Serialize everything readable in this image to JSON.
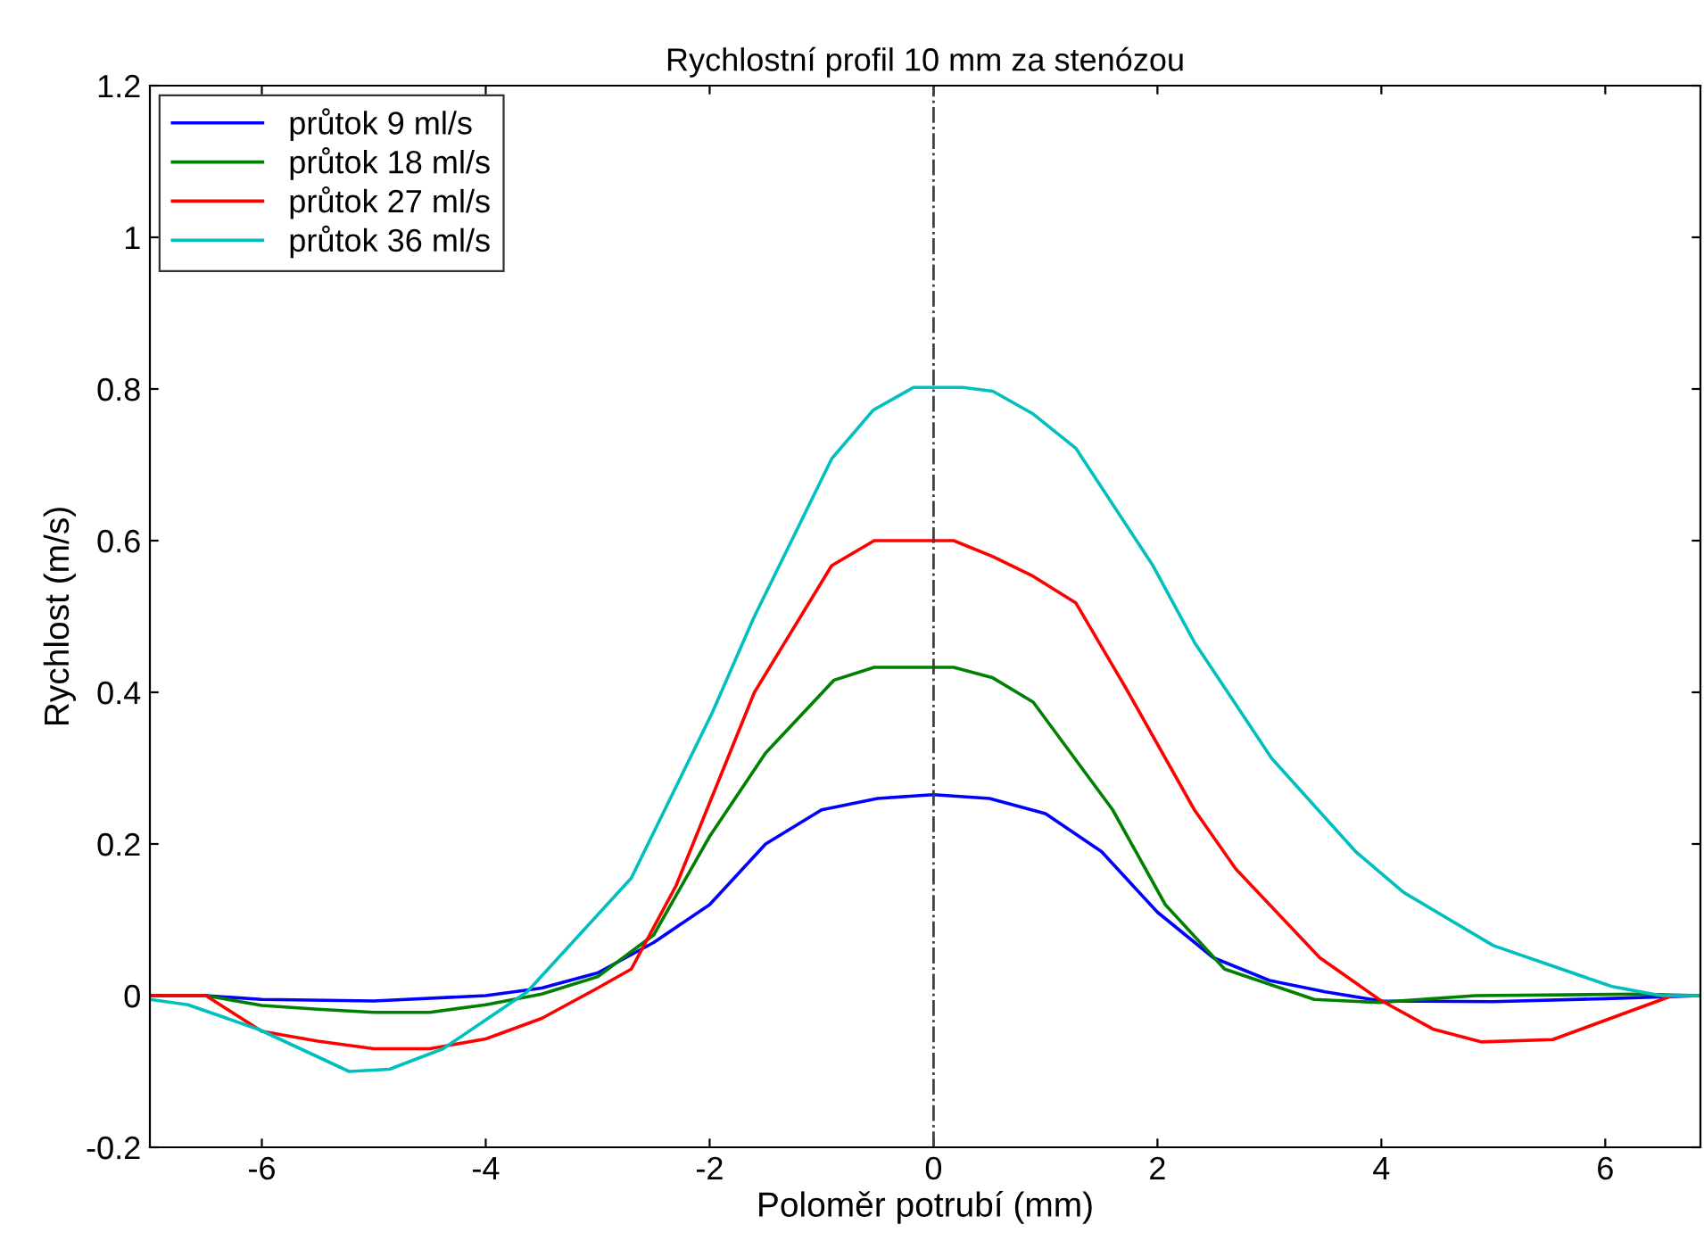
{
  "chart_data": {
    "type": "line",
    "title": "Rychlostní profil 10 mm za stenózou",
    "xlabel": "Poloměr potrubí (mm)",
    "ylabel": "Rychlost (m/s)",
    "xlim": [
      -7,
      6.85
    ],
    "xticks": [
      -6,
      -4,
      -2,
      0,
      2,
      4,
      6
    ],
    "ylim": [
      -0.2,
      1.2
    ],
    "yticks": [
      {
        "value": -0.2,
        "label": "-0.2"
      },
      0,
      0.2,
      0.4,
      0.6,
      0.8,
      1,
      1.2
    ],
    "grid": false,
    "legend": "top left",
    "line_style": "solid",
    "marker": "none",
    "ref_lines": [
      {
        "axis": "x",
        "value": 0,
        "color": "#404040",
        "line_style": "dashdot"
      }
    ],
    "series": [
      {
        "name": "průtok 9 ml/s",
        "color": "#0000ff",
        "x": [
          -7,
          -6.5,
          -6,
          -5,
          -4,
          -3.5,
          -3,
          -2.5,
          -2,
          -1.5,
          -1,
          -0.5,
          0,
          0.5,
          1,
          1.5,
          2,
          2.5,
          3,
          3.5,
          4,
          5,
          6,
          6.85
        ],
        "values": [
          0,
          0,
          -0.005,
          -0.007,
          0,
          0.01,
          0.03,
          0.07,
          0.12,
          0.2,
          0.245,
          0.26,
          0.265,
          0.26,
          0.24,
          0.19,
          0.11,
          0.05,
          0.02,
          0.005,
          -0.007,
          -0.008,
          -0.004,
          0
        ]
      },
      {
        "name": "průtok 18 ml/s",
        "color": "#008000",
        "x": [
          -7,
          -6.5,
          -6,
          -5.5,
          -5,
          -4.5,
          -4,
          -3.5,
          -3,
          -2.5,
          -2,
          -1.5,
          -0.89,
          -0.53,
          0.18,
          0.53,
          0.89,
          1.6,
          2.07,
          2.6,
          3.4,
          3.98,
          4.84,
          6.3,
          6.85
        ],
        "values": [
          0,
          0,
          -0.013,
          -0.018,
          -0.022,
          -0.022,
          -0.012,
          0.002,
          0.025,
          0.08,
          0.21,
          0.32,
          0.416,
          0.433,
          0.433,
          0.419,
          0.387,
          0.245,
          0.12,
          0.035,
          -0.005,
          -0.009,
          0,
          0.002,
          0
        ]
      },
      {
        "name": "průtok 27 ml/s",
        "color": "#ff0000",
        "x": [
          -7,
          -6.5,
          -6,
          -5.5,
          -5,
          -4.5,
          -4,
          -3.5,
          -3,
          -2.7,
          -2.3,
          -1.6,
          -0.91,
          -0.53,
          0.18,
          0.53,
          0.89,
          1.27,
          1.72,
          2.33,
          2.7,
          3.45,
          3.98,
          4.46,
          4.89,
          5.53,
          6.6,
          6.85
        ],
        "values": [
          0,
          0,
          -0.047,
          -0.06,
          -0.07,
          -0.07,
          -0.057,
          -0.03,
          0.01,
          0.035,
          0.145,
          0.4,
          0.567,
          0.6,
          0.6,
          0.579,
          0.553,
          0.518,
          0.405,
          0.245,
          0.167,
          0.05,
          -0.005,
          -0.044,
          -0.061,
          -0.058,
          0,
          0
        ]
      },
      {
        "name": "průtok 36 ml/s",
        "color": "#00bfbf",
        "x": [
          -7,
          -6.66,
          -6.02,
          -5.22,
          -4.86,
          -4.38,
          -3.63,
          -2.7,
          -1.98,
          -1.61,
          -0.91,
          -0.54,
          -0.18,
          0.26,
          0.53,
          0.89,
          1.27,
          1.96,
          2.33,
          3.02,
          3.77,
          4.2,
          5.0,
          6.06,
          6.5,
          6.85
        ],
        "values": [
          -0.005,
          -0.012,
          -0.045,
          -0.1,
          -0.097,
          -0.07,
          0.005,
          0.155,
          0.372,
          0.497,
          0.708,
          0.772,
          0.802,
          0.802,
          0.797,
          0.767,
          0.722,
          0.567,
          0.466,
          0.313,
          0.19,
          0.136,
          0.066,
          0.012,
          0,
          0
        ]
      }
    ]
  }
}
